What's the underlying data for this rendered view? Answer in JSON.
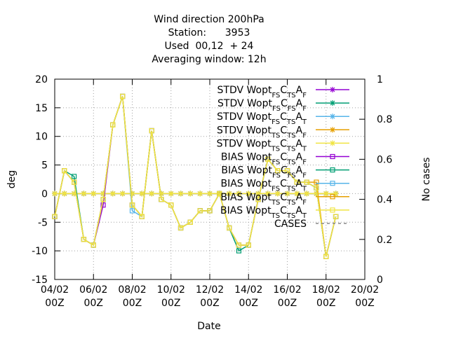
{
  "chart_data": {
    "type": "line",
    "title": [
      "Wind direction 200hPa",
      "Station:      3953",
      "Used  00,12  + 24",
      "Averaging window: 12h"
    ],
    "xlabel": "Date",
    "ylabel": "deg",
    "y2label": "No cases",
    "x": [
      "04/02 00Z",
      "04/02 12Z",
      "05/02 00Z",
      "05/02 12Z",
      "06/02 00Z",
      "06/02 12Z",
      "07/02 00Z",
      "07/02 12Z",
      "08/02 00Z",
      "08/02 12Z",
      "09/02 00Z",
      "09/02 12Z",
      "10/02 00Z",
      "10/02 12Z",
      "11/02 00Z",
      "11/02 12Z",
      "12/02 00Z",
      "12/02 12Z",
      "13/02 00Z",
      "13/02 12Z",
      "14/02 00Z",
      "14/02 12Z",
      "15/02 00Z",
      "15/02 12Z",
      "16/02 00Z",
      "16/02 12Z",
      "17/02 00Z",
      "17/02 12Z",
      "18/02 00Z",
      "18/02 12Z"
    ],
    "xlim": [
      "04/02 00Z",
      "20/02 00Z"
    ],
    "xticks": [
      "04/02 00Z",
      "06/02 00Z",
      "08/02 00Z",
      "10/02 00Z",
      "12/02 00Z",
      "14/02 00Z",
      "16/02 00Z",
      "18/02 00Z",
      "20/02 00Z"
    ],
    "ylim": [
      -15,
      20
    ],
    "yticks": [
      -15,
      -10,
      -5,
      0,
      5,
      10,
      15,
      20
    ],
    "y2lim": [
      0,
      1
    ],
    "y2ticks": [
      0,
      0.2,
      0.4,
      0.6,
      0.8,
      1
    ],
    "grid": true,
    "legend": "top-right",
    "series": [
      {
        "name": "STDV Wopt_{FS}C_{TS}A_{F}",
        "color": "#9400d3",
        "marker": "star",
        "values": [
          0,
          0,
          0,
          0,
          0,
          0,
          0,
          0,
          0,
          0,
          0,
          0,
          0,
          0,
          0,
          0,
          0,
          0,
          0,
          0,
          0,
          0,
          0,
          0,
          0,
          0,
          0,
          0,
          0,
          0
        ]
      },
      {
        "name": "STDV Wopt_{FS}C_{FS}A_{F}",
        "color": "#009e73",
        "marker": "star",
        "values": [
          0,
          0,
          0,
          0,
          0,
          0,
          0,
          0,
          0,
          0,
          0,
          0,
          0,
          0,
          0,
          0,
          0,
          0,
          0,
          0,
          0,
          0,
          0,
          0,
          0,
          0,
          0,
          0,
          0,
          0
        ]
      },
      {
        "name": "STDV Wopt_{FS}C_{TS}A_{T}",
        "color": "#56b4e9",
        "marker": "star",
        "values": [
          0,
          0,
          0,
          0,
          0,
          0,
          0,
          0,
          0,
          0,
          0,
          0,
          0,
          0,
          0,
          0,
          0,
          0,
          0,
          0,
          0,
          0,
          0,
          0,
          0,
          0,
          0,
          0,
          0,
          0
        ]
      },
      {
        "name": "STDV Wopt_{TS}C_{TS}A_{F}",
        "color": "#e69f00",
        "marker": "star",
        "values": [
          0,
          0,
          0,
          0,
          0,
          0,
          0,
          0,
          0,
          0,
          0,
          0,
          0,
          0,
          0,
          0,
          0,
          0,
          0,
          0,
          0,
          0,
          0,
          0,
          0,
          0,
          0,
          0,
          0,
          0
        ]
      },
      {
        "name": "STDV Wopt_{TS}C_{TS}A_{T}",
        "color": "#f0e442",
        "marker": "star",
        "values": [
          0,
          0,
          0,
          0,
          0,
          0,
          0,
          0,
          0,
          0,
          0,
          0,
          0,
          0,
          0,
          0,
          0,
          0,
          0,
          0,
          0,
          0,
          0,
          0,
          0,
          0,
          0,
          0,
          0,
          0
        ]
      },
      {
        "name": "BIAS Wopt_{FS}C_{TS}A_{F}",
        "color": "#9400d3",
        "marker": "square",
        "values": [
          -4,
          4,
          2,
          -8,
          -9,
          -2,
          12,
          17,
          -2,
          -4,
          11,
          -1,
          -2,
          -6,
          -5,
          -3,
          -3,
          0,
          -6,
          -9,
          -9,
          -1,
          6,
          4,
          4,
          2,
          2,
          1,
          -11,
          -4
        ]
      },
      {
        "name": "BIAS Wopt_{FS}C_{FS}A_{F}",
        "color": "#009e73",
        "marker": "square",
        "values": [
          -4,
          4,
          3,
          -8,
          -9,
          -1,
          12,
          17,
          -2,
          -4,
          11,
          -1,
          -2,
          -6,
          -5,
          -3,
          -3,
          0,
          -6,
          -10,
          -9,
          -1,
          6,
          4,
          4,
          2,
          2,
          1,
          -11,
          -4
        ]
      },
      {
        "name": "BIAS Wopt_{FS}C_{TS}A_{T}",
        "color": "#56b4e9",
        "marker": "square",
        "values": [
          -4,
          4,
          2,
          -8,
          -9,
          -1,
          12,
          17,
          -3,
          -4,
          11,
          -1,
          -2,
          -6,
          -5,
          -3,
          -3,
          0,
          -6,
          -9,
          -9,
          -1,
          6,
          4,
          4,
          2,
          2,
          1,
          -11,
          -4
        ]
      },
      {
        "name": "BIAS Wopt_{TS}C_{TS}A_{F}",
        "color": "#e69f00",
        "marker": "square",
        "values": [
          -4,
          4,
          2,
          -8,
          -9,
          -1,
          12,
          17,
          -2,
          -4,
          11,
          -1,
          -2,
          -6,
          -5,
          -3,
          -3,
          0,
          -6,
          -9,
          -9,
          -1,
          6,
          4,
          4,
          2,
          2,
          2,
          -11,
          -4
        ]
      },
      {
        "name": "BIAS Wopt_{TS}C_{TS}A_{T}",
        "color": "#f0e442",
        "marker": "square",
        "values": [
          -4,
          4,
          2,
          -8,
          -9,
          -1,
          12,
          17,
          -2,
          -4,
          11,
          -1,
          -2,
          -6,
          -5,
          -3,
          -3,
          0,
          -6,
          -9,
          -9,
          -1,
          6,
          4,
          4,
          2,
          2,
          1,
          -11,
          -4
        ]
      },
      {
        "name": "CASES",
        "color": "#888888",
        "marker": "dash",
        "axis": "y2",
        "values": [
          null,
          null,
          null,
          null,
          null,
          null,
          null,
          null,
          null,
          null,
          null,
          null,
          null,
          null,
          null,
          null,
          null,
          null,
          null,
          null,
          null,
          null,
          null,
          null,
          null,
          null,
          null,
          null,
          null,
          null
        ]
      }
    ]
  }
}
